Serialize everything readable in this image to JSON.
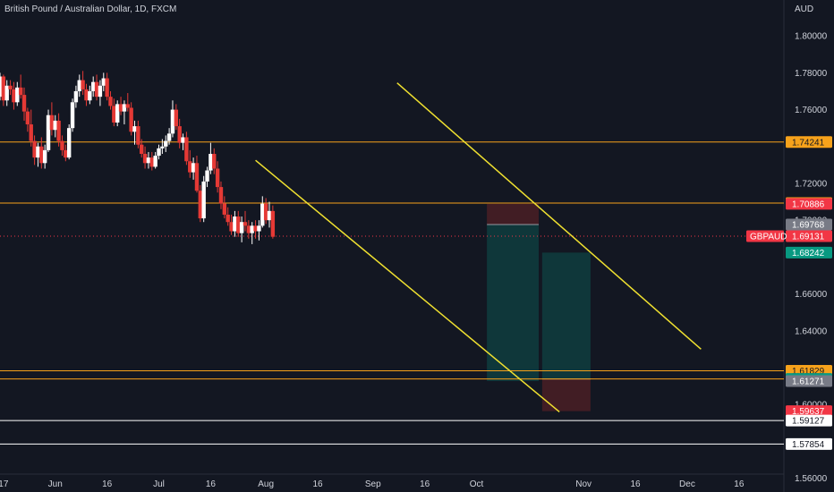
{
  "header": {
    "title": "British Pound / Australian Dollar, 1D, FXCM"
  },
  "currency": "AUD",
  "colors": {
    "background": "#131722",
    "up": "#ffffff",
    "down": "#e53935",
    "channel": "#f0e130",
    "resistance": "#f7a21b",
    "support": "#ffffff",
    "profit_zone": "#0f3d3e",
    "loss_zone": "#4a1f24",
    "text": "#d1d4dc"
  },
  "chart_data": {
    "type": "candlestick",
    "symbol": "GBPAUD",
    "y_axis": {
      "ylim": [
        1.5525,
        1.8195
      ],
      "ticks": [
        "1.80000",
        "1.78000",
        "1.76000",
        "1.72000",
        "1.70000",
        "1.66000",
        "1.64000",
        "1.60000",
        "1.56000"
      ]
    },
    "x_axis": {
      "labels": [
        "17",
        "Jun",
        "16",
        "Jul",
        "16",
        "Aug",
        "16",
        "Sep",
        "16",
        "Oct",
        "Nov",
        "16",
        "Dec",
        "16"
      ],
      "label_days": [
        0,
        15,
        30,
        45,
        60,
        76,
        91,
        107,
        122,
        137,
        168,
        183,
        198,
        213
      ],
      "range_days": [
        -1,
        226
      ]
    },
    "candles_start_day": -3,
    "candles": [
      [
        1.776,
        1.781,
        1.772,
        1.778
      ],
      [
        1.778,
        1.781,
        1.764,
        1.767
      ],
      [
        1.767,
        1.78,
        1.765,
        1.778
      ],
      [
        1.778,
        1.779,
        1.762,
        1.765
      ],
      [
        1.765,
        1.776,
        1.762,
        1.773
      ],
      [
        1.773,
        1.776,
        1.768,
        1.771
      ],
      [
        1.771,
        1.775,
        1.76,
        1.764
      ],
      [
        1.764,
        1.775,
        1.762,
        1.772
      ],
      [
        1.772,
        1.779,
        1.766,
        1.768
      ],
      [
        1.768,
        1.772,
        1.754,
        1.759
      ],
      [
        1.759,
        1.761,
        1.748,
        1.752
      ],
      [
        1.752,
        1.76,
        1.74,
        1.743
      ],
      [
        1.743,
        1.746,
        1.73,
        1.734
      ],
      [
        1.734,
        1.742,
        1.729,
        1.74
      ],
      [
        1.74,
        1.745,
        1.728,
        1.731
      ],
      [
        1.731,
        1.741,
        1.728,
        1.738
      ],
      [
        1.738,
        1.76,
        1.737,
        1.757
      ],
      [
        1.757,
        1.764,
        1.746,
        1.749
      ],
      [
        1.749,
        1.757,
        1.745,
        1.754
      ],
      [
        1.754,
        1.758,
        1.74,
        1.743
      ],
      [
        1.743,
        1.746,
        1.735,
        1.738
      ],
      [
        1.738,
        1.741,
        1.732,
        1.734
      ],
      [
        1.734,
        1.752,
        1.733,
        1.75
      ],
      [
        1.75,
        1.766,
        1.748,
        1.764
      ],
      [
        1.764,
        1.773,
        1.761,
        1.77
      ],
      [
        1.77,
        1.779,
        1.767,
        1.776
      ],
      [
        1.776,
        1.781,
        1.768,
        1.771
      ],
      [
        1.771,
        1.774,
        1.762,
        1.765
      ],
      [
        1.765,
        1.773,
        1.763,
        1.77
      ],
      [
        1.77,
        1.778,
        1.767,
        1.775
      ],
      [
        1.775,
        1.779,
        1.765,
        1.767
      ],
      [
        1.767,
        1.776,
        1.762,
        1.773
      ],
      [
        1.773,
        1.78,
        1.77,
        1.777
      ],
      [
        1.777,
        1.78,
        1.765,
        1.767
      ],
      [
        1.767,
        1.77,
        1.76,
        1.762
      ],
      [
        1.762,
        1.766,
        1.751,
        1.753
      ],
      [
        1.753,
        1.765,
        1.751,
        1.763
      ],
      [
        1.763,
        1.767,
        1.757,
        1.759
      ],
      [
        1.759,
        1.765,
        1.752,
        1.763
      ],
      [
        1.763,
        1.769,
        1.759,
        1.761
      ],
      [
        1.761,
        1.764,
        1.746,
        1.748
      ],
      [
        1.748,
        1.754,
        1.741,
        1.751
      ],
      [
        1.751,
        1.754,
        1.739,
        1.741
      ],
      [
        1.741,
        1.744,
        1.734,
        1.736
      ],
      [
        1.736,
        1.74,
        1.728,
        1.731
      ],
      [
        1.731,
        1.737,
        1.728,
        1.734
      ],
      [
        1.734,
        1.737,
        1.727,
        1.729
      ],
      [
        1.729,
        1.737,
        1.728,
        1.735
      ],
      [
        1.735,
        1.741,
        1.733,
        1.739
      ],
      [
        1.739,
        1.744,
        1.736,
        1.74
      ],
      [
        1.74,
        1.746,
        1.737,
        1.743
      ],
      [
        1.743,
        1.75,
        1.741,
        1.747
      ],
      [
        1.747,
        1.765,
        1.745,
        1.76
      ],
      [
        1.76,
        1.763,
        1.749,
        1.751
      ],
      [
        1.751,
        1.755,
        1.739,
        1.742
      ],
      [
        1.742,
        1.747,
        1.738,
        1.745
      ],
      [
        1.745,
        1.748,
        1.73,
        1.732
      ],
      [
        1.732,
        1.738,
        1.723,
        1.726
      ],
      [
        1.726,
        1.734,
        1.722,
        1.731
      ],
      [
        1.731,
        1.735,
        1.715,
        1.716
      ],
      [
        1.716,
        1.719,
        1.699,
        1.701
      ],
      [
        1.701,
        1.724,
        1.699,
        1.721
      ],
      [
        1.721,
        1.729,
        1.718,
        1.727
      ],
      [
        1.727,
        1.742,
        1.725,
        1.736
      ],
      [
        1.736,
        1.739,
        1.725,
        1.728
      ],
      [
        1.728,
        1.732,
        1.715,
        1.718
      ],
      [
        1.718,
        1.721,
        1.706,
        1.709
      ],
      [
        1.709,
        1.713,
        1.701,
        1.703
      ],
      [
        1.703,
        1.707,
        1.697,
        1.699
      ],
      [
        1.699,
        1.703,
        1.692,
        1.694
      ],
      [
        1.694,
        1.705,
        1.691,
        1.702
      ],
      [
        1.702,
        1.705,
        1.691,
        1.693
      ],
      [
        1.693,
        1.702,
        1.688,
        1.699
      ],
      [
        1.699,
        1.705,
        1.694,
        1.697
      ],
      [
        1.697,
        1.7,
        1.69,
        1.693
      ],
      [
        1.693,
        1.699,
        1.687,
        1.697
      ],
      [
        1.697,
        1.7,
        1.69,
        1.694
      ],
      [
        1.694,
        1.7,
        1.689,
        1.697
      ],
      [
        1.697,
        1.713,
        1.696,
        1.709
      ],
      [
        1.709,
        1.712,
        1.698,
        1.7
      ],
      [
        1.7,
        1.71,
        1.696,
        1.705
      ],
      [
        1.705,
        1.708,
        1.69,
        1.691
      ]
    ],
    "channel_lines": [
      {
        "from": [
          73,
          1.7325
        ],
        "to": [
          161,
          1.596
        ]
      },
      {
        "from": [
          114,
          1.7745
        ],
        "to": [
          202,
          1.63
        ]
      }
    ],
    "horizontal_lines": [
      {
        "price": 1.74241,
        "color": "resistance"
      },
      {
        "price": 1.7093,
        "color": "resistance"
      },
      {
        "price": 1.61829,
        "color": "resistance"
      },
      {
        "price": 1.61384,
        "color": "resistance"
      },
      {
        "price": 1.59127,
        "color": "support"
      },
      {
        "price": 1.57854,
        "color": "support"
      }
    ],
    "last_price_line": 1.69131,
    "position_boxes": [
      {
        "x0_day": 140,
        "x1_day": 155,
        "entry": 1.69768,
        "stop": 1.70886,
        "target": 1.61271
      },
      {
        "x0_day": 156,
        "x1_day": 170,
        "entry": 1.61384,
        "stop": 1.59637,
        "target": 1.68242
      }
    ],
    "price_labels": [
      {
        "price": 1.74241,
        "text": "1.74241",
        "bg": "#f7a21b",
        "fg": "#131722"
      },
      {
        "price": 1.7093,
        "text": "1.70930",
        "bg": "#f7a21b",
        "fg": "#131722"
      },
      {
        "price": 1.70886,
        "text": "1.70886",
        "bg": "#f23645",
        "fg": "#ffffff"
      },
      {
        "price": 1.69768,
        "text": "1.69768",
        "bg": "#787b86",
        "fg": "#ffffff"
      },
      {
        "price": 1.69131,
        "text": "1.69131",
        "bg": "#f23645",
        "fg": "#ffffff"
      },
      {
        "price": 1.68242,
        "text": "1.68242",
        "bg": "#089981",
        "fg": "#ffffff"
      },
      {
        "price": 1.61829,
        "text": "1.61829",
        "bg": "#f7a21b",
        "fg": "#131722"
      },
      {
        "price": 1.61384,
        "text": "1.61384",
        "bg": "#089981",
        "fg": "#ffffff"
      },
      {
        "price": 1.61271,
        "text": "1.61271",
        "bg": "#787b86",
        "fg": "#ffffff"
      },
      {
        "price": 1.59637,
        "text": "1.59637",
        "bg": "#f23645",
        "fg": "#ffffff"
      },
      {
        "price": 1.59127,
        "text": "1.59127",
        "bg": "#ffffff",
        "fg": "#131722"
      },
      {
        "price": 1.57854,
        "text": "1.57854",
        "bg": "#ffffff",
        "fg": "#131722"
      }
    ],
    "symbol_label": {
      "text": "GBPAUD",
      "price": 1.69131
    }
  }
}
